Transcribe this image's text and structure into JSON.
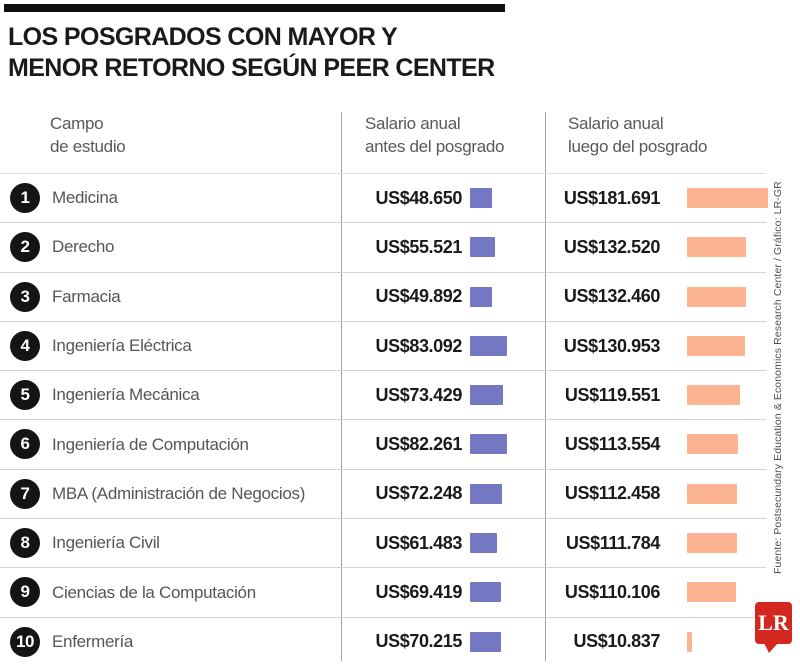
{
  "title": {
    "line1": "LOS POSGRADOS CON MAYOR Y",
    "line2": "MENOR RETORNO SEGÚN PEER CENTER"
  },
  "columns": {
    "field": {
      "line1": "Campo",
      "line2": "de estudio"
    },
    "before": {
      "line1": "Salario anual",
      "line2": "antes del posgrado"
    },
    "after": {
      "line1": "Salario anual",
      "line2": "luego del posgrado"
    }
  },
  "rows": [
    {
      "rank": "1",
      "field": "Medicina",
      "before": "US$48.650",
      "after": "US$181.691",
      "before_value": 48650,
      "after_value": 181691
    },
    {
      "rank": "2",
      "field": "Derecho",
      "before": "US$55.521",
      "after": "US$132.520",
      "before_value": 55521,
      "after_value": 132520
    },
    {
      "rank": "3",
      "field": "Farmacia",
      "before": "US$49.892",
      "after": "US$132.460",
      "before_value": 49892,
      "after_value": 132460
    },
    {
      "rank": "4",
      "field": "Ingeniería Eléctrica",
      "before": "US$83.092",
      "after": "US$130.953",
      "before_value": 83092,
      "after_value": 130953
    },
    {
      "rank": "5",
      "field": "Ingeniería Mecánica",
      "before": "US$73.429",
      "after": "US$119.551",
      "before_value": 73429,
      "after_value": 119551
    },
    {
      "rank": "6",
      "field": "Ingeniería de Computación",
      "before": "US$82.261",
      "after": "US$113.554",
      "before_value": 82261,
      "after_value": 113554
    },
    {
      "rank": "7",
      "field": "MBA (Administración de Negocios)",
      "before": "US$72.248",
      "after": "US$112.458",
      "before_value": 72248,
      "after_value": 112458
    },
    {
      "rank": "8",
      "field": "Ingeniería Civil",
      "before": "US$61.483",
      "after": "US$111.784",
      "before_value": 61483,
      "after_value": 111784
    },
    {
      "rank": "9",
      "field": "Ciencias de la Computación",
      "before": "US$69.419",
      "after": "US$110.106",
      "before_value": 69419,
      "after_value": 110106
    },
    {
      "rank": "10",
      "field": "Enfermería",
      "before": "US$70.215",
      "after": "US$10.837",
      "before_value": 70215,
      "after_value": 10837
    }
  ],
  "chart_data": {
    "type": "bar",
    "title": "LOS POSGRADOS CON MAYOR Y MENOR RETORNO SEGÚN PEER CENTER",
    "categories": [
      "Medicina",
      "Derecho",
      "Farmacia",
      "Ingeniería Eléctrica",
      "Ingeniería Mecánica",
      "Ingeniería de Computación",
      "MBA (Administración de Negocios)",
      "Ingeniería Civil",
      "Ciencias de la Computación",
      "Enfermería"
    ],
    "series": [
      {
        "name": "Salario anual antes del posgrado",
        "values": [
          48650,
          55521,
          49892,
          83092,
          73429,
          82261,
          72248,
          61483,
          69419,
          70215
        ],
        "color": "#7477c1"
      },
      {
        "name": "Salario anual luego del posgrado",
        "values": [
          181691,
          132520,
          132460,
          130953,
          119551,
          113554,
          112458,
          111784,
          110106,
          10837
        ],
        "color": "#fcb392"
      }
    ],
    "value_label_format": "US$ thousands with dot separator",
    "orientation": "horizontal",
    "xlim": [
      0,
      185000
    ],
    "grid": false,
    "legend_position": "column-headers"
  },
  "source_note": "Fuente: Postsecundary Education & Economics Research Center / Gráfico: LR-GR",
  "logo": {
    "text": "LR"
  },
  "colors": {
    "before_bar": "#7477c1",
    "after_bar": "#fcb392",
    "logo_red": "#d22820",
    "rank_circle": "#141414",
    "title_text": "#1a1a1a",
    "label_text": "#55565a"
  }
}
